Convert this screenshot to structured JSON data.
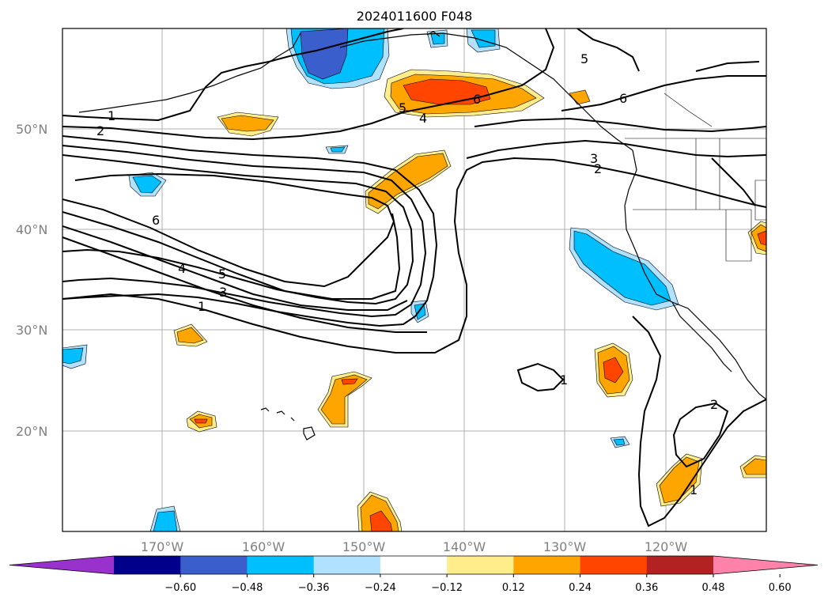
{
  "title": "2024011600 F048",
  "lat_labels": [
    "50°N",
    "40°N",
    "30°N",
    "20°N"
  ],
  "lon_labels": [
    "170°W",
    "160°W",
    "150°W",
    "140°W",
    "130°W",
    "120°W"
  ],
  "contour_labels": [
    "1",
    "2",
    "6",
    "4",
    "5",
    "3",
    "1",
    "5",
    "4",
    "6",
    "5",
    "6",
    "3",
    "2",
    "1",
    "2",
    "1"
  ],
  "colorbar": {
    "ticks": [
      "−0.60",
      "−0.48",
      "−0.36",
      "−0.24",
      "−0.12",
      "0.12",
      "0.24",
      "0.36",
      "0.48",
      "0.60"
    ],
    "colors": [
      "#9932cc",
      "#00008b",
      "#3a5fcd",
      "#00bfff",
      "#b0e2ff",
      "#ffffff",
      "#ffec8b",
      "#ffa500",
      "#ff4500",
      "#b22222",
      "#ff82ab"
    ]
  },
  "colors": {
    "grid": "#b0b0b0",
    "contour": "#000000",
    "land_outline": "#000000"
  }
}
